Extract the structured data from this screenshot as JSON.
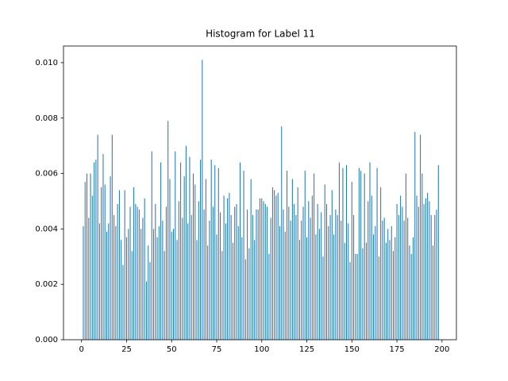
{
  "chart_data": {
    "type": "bar",
    "title": "Histogram for Label 11",
    "color": "#1f77b4",
    "x": [
      1,
      2,
      3,
      4,
      5,
      6,
      7,
      8,
      9,
      10,
      11,
      12,
      13,
      14,
      15,
      16,
      17,
      18,
      19,
      20,
      21,
      22,
      23,
      24,
      25,
      26,
      27,
      28,
      29,
      30,
      31,
      32,
      33,
      34,
      35,
      36,
      37,
      38,
      39,
      40,
      41,
      42,
      43,
      44,
      45,
      46,
      47,
      48,
      49,
      50,
      51,
      52,
      53,
      54,
      55,
      56,
      57,
      58,
      59,
      60,
      61,
      62,
      63,
      64,
      65,
      66,
      67,
      68,
      69,
      70,
      71,
      72,
      73,
      74,
      75,
      76,
      77,
      78,
      79,
      80,
      81,
      82,
      83,
      84,
      85,
      86,
      87,
      88,
      89,
      90,
      91,
      92,
      93,
      94,
      95,
      96,
      97,
      98,
      99,
      100,
      101,
      102,
      103,
      104,
      105,
      106,
      107,
      108,
      109,
      110,
      111,
      112,
      113,
      114,
      115,
      116,
      117,
      118,
      119,
      120,
      121,
      122,
      123,
      124,
      125,
      126,
      127,
      128,
      129,
      130,
      131,
      132,
      133,
      134,
      135,
      136,
      137,
      138,
      139,
      140,
      141,
      142,
      143,
      144,
      145,
      146,
      147,
      148,
      149,
      150,
      151,
      152,
      153,
      154,
      155,
      156,
      157,
      158,
      159,
      160,
      161,
      162,
      163,
      164,
      165,
      166,
      167,
      168,
      169,
      170,
      171,
      172,
      173,
      174,
      175,
      176,
      177,
      178,
      179,
      180,
      181,
      182,
      183,
      184,
      185,
      186,
      187,
      188,
      189,
      190,
      191,
      192,
      193,
      194,
      195,
      196,
      197,
      198
    ],
    "values": [
      0.0041,
      0.0057,
      0.006,
      0.0044,
      0.006,
      0.0052,
      0.0064,
      0.0065,
      0.0074,
      0.0042,
      0.0055,
      0.0067,
      0.0056,
      0.0039,
      0.0042,
      0.0059,
      0.0074,
      0.0045,
      0.0041,
      0.0049,
      0.0054,
      0.0036,
      0.0027,
      0.0054,
      0.0037,
      0.004,
      0.0048,
      0.0032,
      0.0055,
      0.0049,
      0.0048,
      0.0047,
      0.004,
      0.0044,
      0.0051,
      0.0021,
      0.0034,
      0.0028,
      0.0068,
      0.004,
      0.0049,
      0.0037,
      0.0041,
      0.0064,
      0.0043,
      0.0032,
      0.0048,
      0.0079,
      0.0058,
      0.0039,
      0.004,
      0.0068,
      0.0036,
      0.005,
      0.0064,
      0.0044,
      0.0059,
      0.007,
      0.0042,
      0.0066,
      0.0045,
      0.006,
      0.0056,
      0.0036,
      0.005,
      0.0065,
      0.0101,
      0.0047,
      0.0058,
      0.0034,
      0.0043,
      0.0065,
      0.0048,
      0.0063,
      0.0038,
      0.0062,
      0.0046,
      0.0032,
      0.0052,
      0.0042,
      0.0051,
      0.0053,
      0.0045,
      0.0035,
      0.0048,
      0.0049,
      0.0041,
      0.0064,
      0.0037,
      0.0061,
      0.0029,
      0.0047,
      0.0033,
      0.0058,
      0.0045,
      0.0036,
      0.0047,
      0.0047,
      0.0051,
      0.0051,
      0.005,
      0.0049,
      0.0048,
      0.0031,
      0.0044,
      0.0055,
      0.0054,
      0.0052,
      0.0053,
      0.0041,
      0.0077,
      0.0047,
      0.0039,
      0.0061,
      0.0048,
      0.0043,
      0.0058,
      0.0049,
      0.0045,
      0.0055,
      0.0036,
      0.0043,
      0.0048,
      0.0061,
      0.0037,
      0.005,
      0.0044,
      0.0052,
      0.006,
      0.0038,
      0.0049,
      0.004,
      0.0046,
      0.003,
      0.0056,
      0.0049,
      0.0041,
      0.0045,
      0.0054,
      0.0038,
      0.0047,
      0.0045,
      0.0064,
      0.0043,
      0.0062,
      0.0035,
      0.0063,
      0.0042,
      0.0028,
      0.0057,
      0.0045,
      0.0031,
      0.0031,
      0.0062,
      0.0061,
      0.0033,
      0.006,
      0.0035,
      0.005,
      0.0064,
      0.0052,
      0.0038,
      0.0041,
      0.0062,
      0.003,
      0.0055,
      0.0043,
      0.0044,
      0.0035,
      0.004,
      0.0036,
      0.0041,
      0.0032,
      0.0037,
      0.0049,
      0.0045,
      0.0052,
      0.0048,
      0.0043,
      0.006,
      0.0044,
      0.0034,
      0.0031,
      0.0037,
      0.0075,
      0.0052,
      0.0048,
      0.0074,
      0.006,
      0.0049,
      0.0051,
      0.0053,
      0.005,
      0.0045,
      0.0034,
      0.0045,
      0.0047,
      0.0063
    ],
    "xlim": [
      -10,
      208
    ],
    "xticks": [
      0,
      25,
      50,
      75,
      100,
      125,
      150,
      175,
      200
    ],
    "ylim": [
      0,
      0.0106
    ],
    "yticks": [
      {
        "value": 0,
        "label": "0.000"
      },
      {
        "value": 0.002,
        "label": "0.002"
      },
      {
        "value": 0.004,
        "label": "0.004"
      },
      {
        "value": 0.006,
        "label": "0.006"
      },
      {
        "value": 0.008,
        "label": "0.008"
      },
      {
        "value": 0.01,
        "label": "0.010"
      }
    ]
  }
}
